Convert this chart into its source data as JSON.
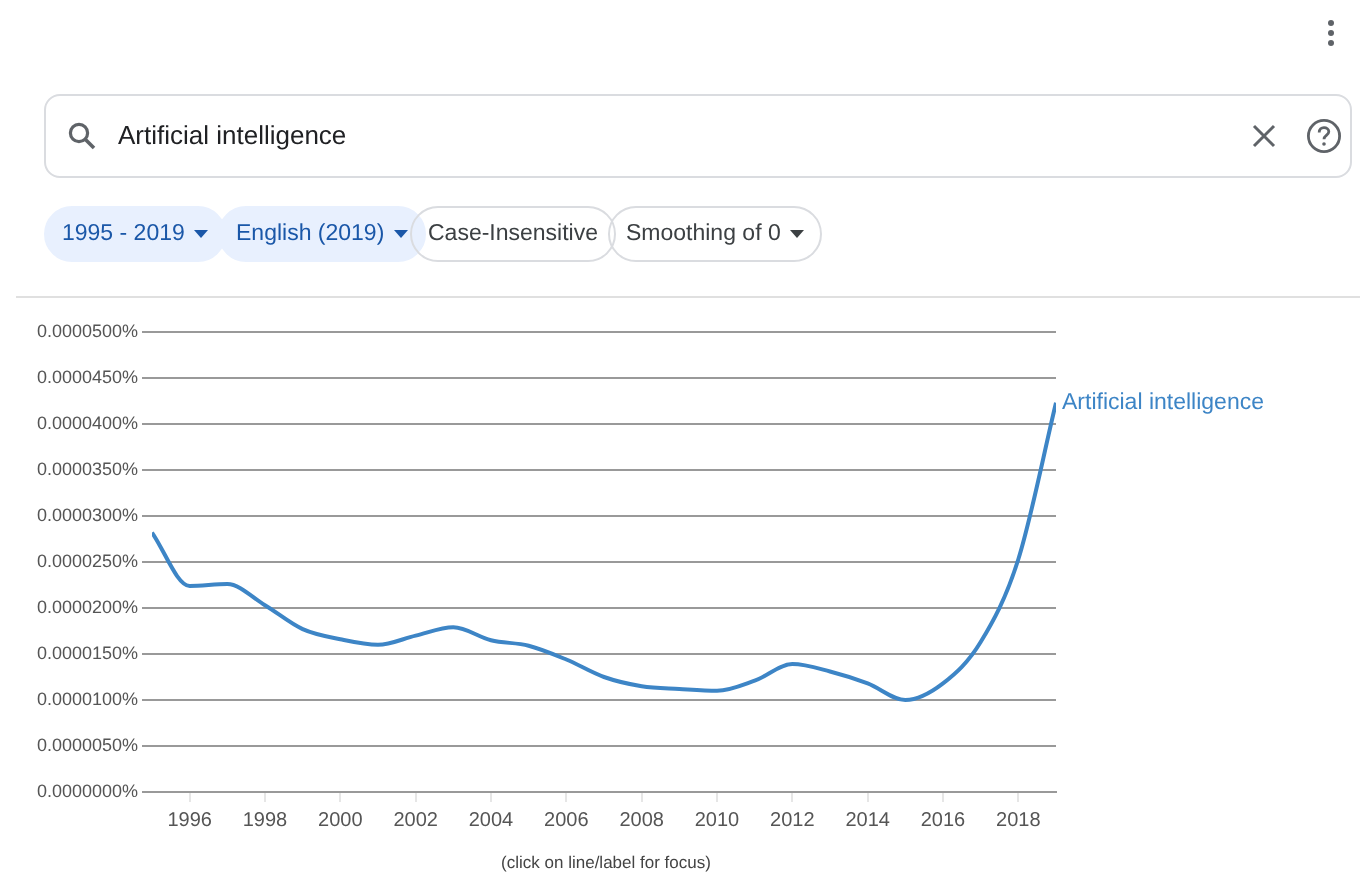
{
  "chart_data": {
    "type": "line",
    "x": [
      1995,
      1996,
      1997,
      1998,
      1999,
      2000,
      2001,
      2002,
      2003,
      2004,
      2005,
      2006,
      2007,
      2008,
      2009,
      2010,
      2011,
      2012,
      2013,
      2014,
      2015,
      2016,
      2017,
      2018,
      2019
    ],
    "series": [
      {
        "name": "Artificial intelligence",
        "color": "#3d85c6",
        "values": [
          2.82e-05,
          2.24e-05,
          2.26e-05,
          2.03e-05,
          1.77e-05,
          1.66e-05,
          1.6e-05,
          1.7e-05,
          1.79e-05,
          1.65e-05,
          1.59e-05,
          1.44e-05,
          1.25e-05,
          1.15e-05,
          1.12e-05,
          1.1e-05,
          1.21e-05,
          1.39e-05,
          1.31e-05,
          1.18e-05,
          1e-05,
          1.18e-05,
          1.63e-05,
          2.53e-05,
          4.23e-05
        ]
      }
    ],
    "xlim": [
      1995,
      2019
    ],
    "xticks": [
      1996,
      1998,
      2000,
      2002,
      2004,
      2006,
      2008,
      2010,
      2012,
      2014,
      2016,
      2018
    ],
    "ylim": [
      0,
      5e-05
    ],
    "yticks": [
      {
        "value": 0,
        "label": "0.0000000%"
      },
      {
        "value": 5e-06,
        "label": "0.0000050%"
      },
      {
        "value": 1e-05,
        "label": "0.0000100%"
      },
      {
        "value": 1.5e-05,
        "label": "0.0000150%"
      },
      {
        "value": 2e-05,
        "label": "0.0000200%"
      },
      {
        "value": 2.5e-05,
        "label": "0.0000250%"
      },
      {
        "value": 3e-05,
        "label": "0.0000300%"
      },
      {
        "value": 3.5e-05,
        "label": "0.0000350%"
      },
      {
        "value": 4e-05,
        "label": "0.0000400%"
      },
      {
        "value": 4.5e-05,
        "label": "0.0000450%"
      },
      {
        "value": 5e-05,
        "label": "0.0000500%"
      }
    ],
    "grid": "y",
    "legend": false,
    "marker": "none",
    "line_style": "solid",
    "annotations": [
      "Artificial intelligence",
      "1995 - 2019",
      "English (2019)",
      "Case-Insensitive",
      "Smoothing of 0",
      "(click on line/label for focus)"
    ]
  }
}
